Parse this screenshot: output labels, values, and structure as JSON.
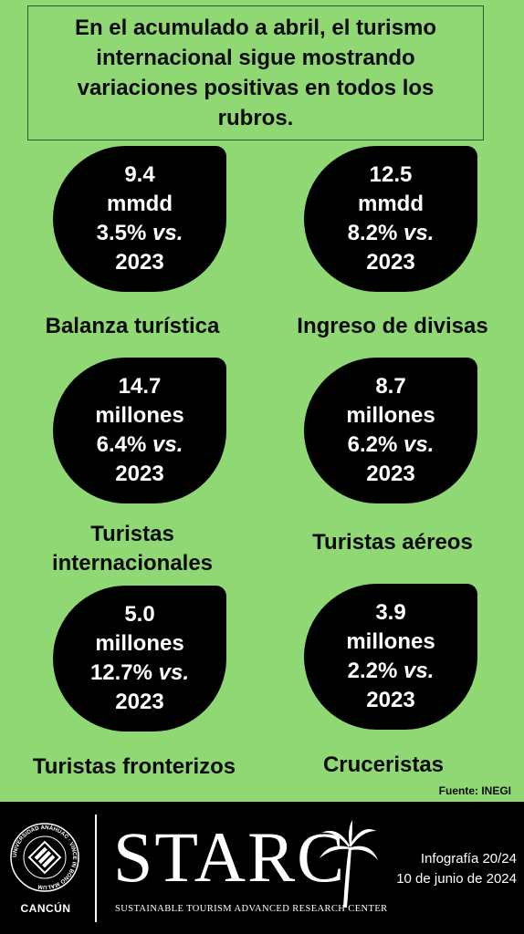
{
  "title": "En el acumulado a abril, el turismo internacional  sigue mostrando variaciones positivas en todos los rubros.",
  "cards": [
    {
      "value": "9.4",
      "unit": "mmdd",
      "change": "3.5%",
      "vs": "vs.",
      "year": "2023",
      "label": "Balanza turística"
    },
    {
      "value": "12.5",
      "unit": "mmdd",
      "change": "8.2%",
      "vs": "vs.",
      "year": "2023",
      "label": "Ingreso de divisas"
    },
    {
      "value": "14.7",
      "unit": "millones",
      "change": "6.4%",
      "vs": "vs.",
      "year": "2023",
      "label": "Turistas internacionales"
    },
    {
      "value": "8.7",
      "unit": "millones",
      "change": "6.2%",
      "vs": "vs.",
      "year": "2023",
      "label": "Turistas aéreos"
    },
    {
      "value": "5.0",
      "unit": "millones",
      "change": "12.7%",
      "vs": "vs.",
      "year": "2023",
      "label": "Turistas fronterizos"
    },
    {
      "value": "3.9",
      "unit": "millones",
      "change": "2.2%",
      "vs": "vs.",
      "year": "2023",
      "label": "Cruceristas"
    }
  ],
  "source": "Fuente: INEGI",
  "footer": {
    "university_seal_text": "UNIVERSIDAD ANÁHUAC · VINCE IN BONO MALUM",
    "university_name": "CANCÚN",
    "brand": "STARC",
    "brand_subtitle": "SUSTAINABLE TOURISM ADVANCED RESEARCH CENTER",
    "issue": "Infografía 20/24",
    "date": "10 de junio de 2024"
  },
  "colors": {
    "background": "#8fd873",
    "drop": "#000000",
    "footer": "#000000",
    "text_light": "#ffffff"
  }
}
